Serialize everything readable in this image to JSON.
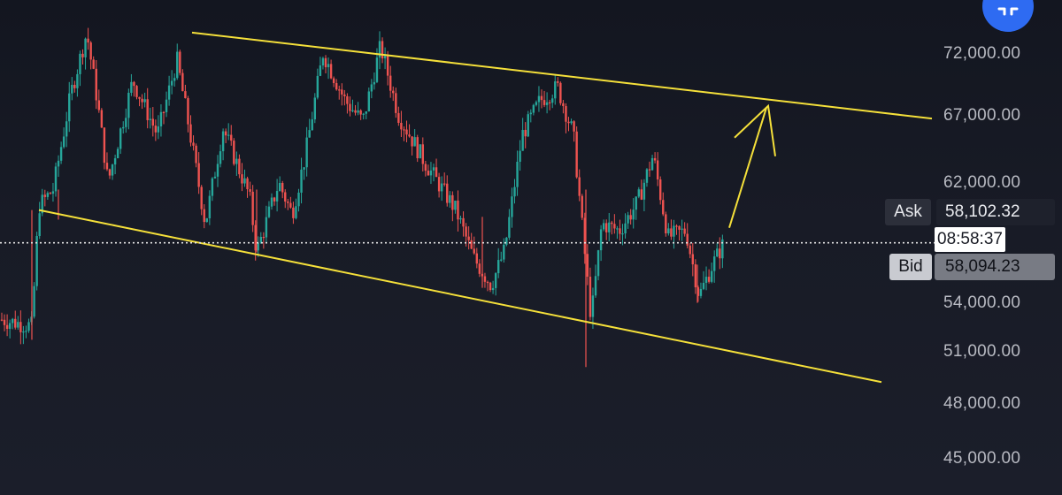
{
  "chart_data": {
    "type": "candlestick",
    "title": "",
    "xlabel": "",
    "ylabel": "",
    "yaxis_ticks": [
      "72,000.00",
      "67,000.00",
      "62,000.00",
      "54,000.00",
      "51,000.00",
      "48,000.00",
      "45,000.00"
    ],
    "current_price_line": 58098,
    "colors": {
      "up": "#26a69a",
      "down": "#ef5350",
      "trendline": "#f5e03a",
      "current_line": "#e6e6e6"
    },
    "approx_price_path": [
      [
        0,
        52500
      ],
      [
        36,
        52000
      ],
      [
        44,
        60800
      ],
      [
        60,
        62000
      ],
      [
        80,
        69000
      ],
      [
        98,
        73500
      ],
      [
        110,
        68500
      ],
      [
        122,
        62500
      ],
      [
        150,
        70000
      ],
      [
        178,
        66000
      ],
      [
        200,
        71500
      ],
      [
        215,
        66000
      ],
      [
        232,
        59500
      ],
      [
        252,
        66500
      ],
      [
        282,
        61500
      ],
      [
        290,
        57400
      ],
      [
        315,
        62500
      ],
      [
        330,
        60200
      ],
      [
        345,
        64500
      ],
      [
        365,
        72000
      ],
      [
        390,
        68500
      ],
      [
        410,
        67000
      ],
      [
        430,
        72500
      ],
      [
        450,
        67500
      ],
      [
        480,
        64000
      ],
      [
        500,
        62000
      ],
      [
        515,
        60500
      ],
      [
        535,
        57000
      ],
      [
        555,
        55000
      ],
      [
        570,
        57500
      ],
      [
        590,
        66000
      ],
      [
        610,
        68500
      ],
      [
        630,
        69500
      ],
      [
        648,
        66000
      ],
      [
        660,
        57800
      ],
      [
        668,
        52500
      ],
      [
        680,
        59500
      ],
      [
        700,
        59000
      ],
      [
        720,
        61000
      ],
      [
        738,
        64500
      ],
      [
        755,
        58500
      ],
      [
        775,
        59000
      ],
      [
        790,
        54200
      ],
      [
        805,
        56500
      ],
      [
        818,
        58098
      ]
    ],
    "annotations": {
      "upper_trendline": {
        "x1": 217,
        "y1": 73500,
        "x2": 1053,
        "y2": 67200
      },
      "lower_trendline": {
        "x1": 44,
        "y1": 60500,
        "x2": 996,
        "y2": 47900
      },
      "projection_arrow": {
        "from": [
          824,
          59200
        ],
        "to": [
          866,
          68000
        ]
      }
    },
    "quote": {
      "ask_label": "Ask",
      "ask_price": "58,102.32",
      "countdown": "08:58:37",
      "bid_label": "Bid",
      "bid_price": "58,094.23"
    }
  }
}
